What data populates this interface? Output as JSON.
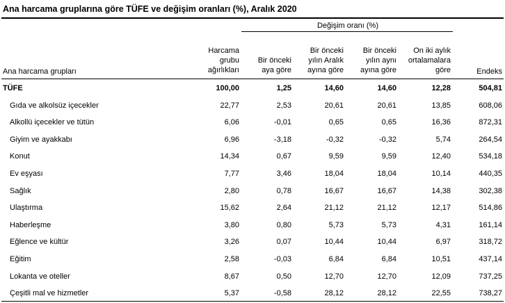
{
  "title": "Ana harcama gruplarına göre TÜFE ve değişim oranları (%), Aralık 2020",
  "group_header": "Değişim oranı (%)",
  "columns": {
    "group": "Ana harcama grupları",
    "weight": "Harcama\ngrubu\nağırlıkları",
    "monthly": "Bir önceki\naya göre",
    "dec": "Bir önceki\nyılın Aralık\nayına göre",
    "same": "Bir önceki\nyılın aynı\nayına göre",
    "avg12": "On iki aylık\nortalamalara\ngöre",
    "index": "Endeks"
  },
  "rows": [
    {
      "name": "TÜFE",
      "weight": "100,00",
      "monthly": "1,25",
      "dec": "14,60",
      "same": "14,60",
      "avg12": "12,28",
      "index": "504,81"
    },
    {
      "name": "Gıda ve alkolsüz içecekler",
      "weight": "22,77",
      "monthly": "2,53",
      "dec": "20,61",
      "same": "20,61",
      "avg12": "13,85",
      "index": "608,06"
    },
    {
      "name": "Alkollü içecekler ve tütün",
      "weight": "6,06",
      "monthly": "-0,01",
      "dec": "0,65",
      "same": "0,65",
      "avg12": "16,36",
      "index": "872,31"
    },
    {
      "name": "Giyim ve ayakkabı",
      "weight": "6,96",
      "monthly": "-3,18",
      "dec": "-0,32",
      "same": "-0,32",
      "avg12": "5,74",
      "index": "264,54"
    },
    {
      "name": "Konut",
      "weight": "14,34",
      "monthly": "0,67",
      "dec": "9,59",
      "same": "9,59",
      "avg12": "12,40",
      "index": "534,18"
    },
    {
      "name": "Ev eşyası",
      "weight": "7,77",
      "monthly": "3,46",
      "dec": "18,04",
      "same": "18,04",
      "avg12": "10,14",
      "index": "440,35"
    },
    {
      "name": "Sağlık",
      "weight": "2,80",
      "monthly": "0,78",
      "dec": "16,67",
      "same": "16,67",
      "avg12": "14,38",
      "index": "302,38"
    },
    {
      "name": "Ulaştırma",
      "weight": "15,62",
      "monthly": "2,64",
      "dec": "21,12",
      "same": "21,12",
      "avg12": "12,17",
      "index": "514,86"
    },
    {
      "name": "Haberleşme",
      "weight": "3,80",
      "monthly": "0,80",
      "dec": "5,73",
      "same": "5,73",
      "avg12": "4,31",
      "index": "161,14"
    },
    {
      "name": "Eğlence ve kültür",
      "weight": "3,26",
      "monthly": "0,07",
      "dec": "10,44",
      "same": "10,44",
      "avg12": "6,97",
      "index": "318,72"
    },
    {
      "name": "Eğitim",
      "weight": "2,58",
      "monthly": "-0,03",
      "dec": "6,84",
      "same": "6,84",
      "avg12": "10,51",
      "index": "437,14"
    },
    {
      "name": "Lokanta ve oteller",
      "weight": "8,67",
      "monthly": "0,50",
      "dec": "12,70",
      "same": "12,70",
      "avg12": "12,09",
      "index": "737,25"
    },
    {
      "name": "Çeşitli mal ve hizmetler",
      "weight": "5,37",
      "monthly": "-0,58",
      "dec": "28,12",
      "same": "28,12",
      "avg12": "22,55",
      "index": "738,27"
    }
  ]
}
